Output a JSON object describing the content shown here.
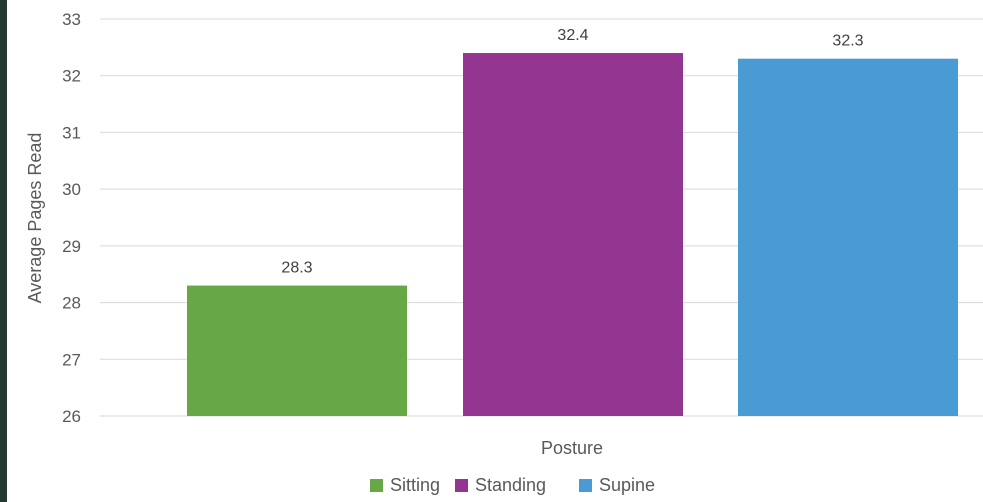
{
  "chart_data": {
    "type": "bar",
    "title": "",
    "xlabel": "Posture",
    "ylabel": "Average Pages Read",
    "ylim": [
      26,
      33
    ],
    "yticks": [
      26,
      27,
      28,
      29,
      30,
      31,
      32,
      33
    ],
    "grid": true,
    "legend_position": "bottom",
    "categories": [
      "Sitting",
      "Standing",
      "Supine"
    ],
    "values": [
      28.3,
      32.4,
      32.3
    ],
    "data_labels": [
      "28.3",
      "32.4",
      "32.3"
    ],
    "colors": [
      "#67a745",
      "#943591",
      "#4a9bd3"
    ],
    "legend": [
      {
        "label": "Sitting",
        "color": "#67a745"
      },
      {
        "label": "Standing",
        "color": "#943591"
      },
      {
        "label": "Supine",
        "color": "#4a9bd3"
      }
    ]
  }
}
